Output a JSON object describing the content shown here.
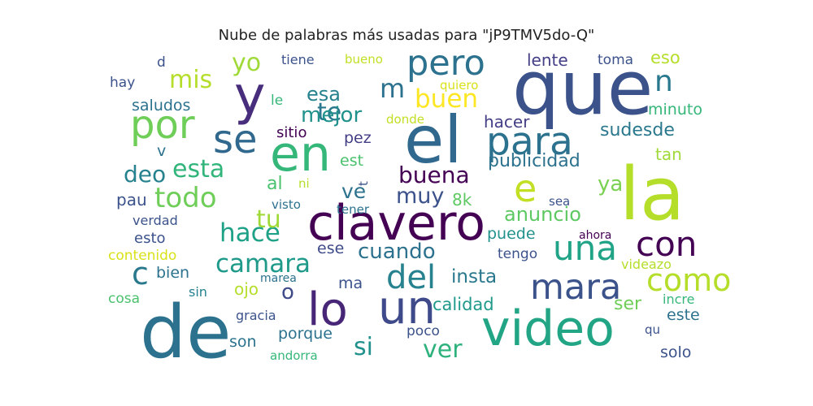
{
  "chart_data": {
    "type": "wordcloud",
    "title": "Nube de palabras más usadas para \"jP9TMV5do-Q\"",
    "background": "#ffffff",
    "colormap": "viridis",
    "words": [
      {
        "text": "que",
        "color": "#3b528b"
      },
      {
        "text": "la",
        "color": "#b5de2b"
      },
      {
        "text": "de",
        "color": "#2c728e"
      },
      {
        "text": "el",
        "color": "#31688e"
      },
      {
        "text": "y",
        "color": "#472d7b"
      },
      {
        "text": "clavero",
        "color": "#440154"
      },
      {
        "text": "en",
        "color": "#35b779"
      },
      {
        "text": "video",
        "color": "#21a585"
      },
      {
        "text": "un",
        "color": "#3e4a89"
      },
      {
        "text": "lo",
        "color": "#482677"
      },
      {
        "text": "se",
        "color": "#31688e"
      },
      {
        "text": "por",
        "color": "#6ece58"
      },
      {
        "text": "para",
        "color": "#2c728e"
      },
      {
        "text": "pero",
        "color": "#2c728e"
      },
      {
        "text": "e",
        "color": "#c2df23"
      },
      {
        "text": "mara",
        "color": "#3b528b"
      },
      {
        "text": "una",
        "color": "#20a386"
      },
      {
        "text": "con",
        "color": "#440154"
      },
      {
        "text": "como",
        "color": "#b5de2b"
      },
      {
        "text": "c",
        "color": "#2a788e"
      },
      {
        "text": "del",
        "color": "#26828e"
      },
      {
        "text": "n",
        "color": "#2a788e"
      },
      {
        "text": "todo",
        "color": "#6ece58"
      },
      {
        "text": "camara",
        "color": "#1f9a8a"
      },
      {
        "text": "hace",
        "color": "#1fa188"
      },
      {
        "text": "buen",
        "color": "#fde725"
      },
      {
        "text": "mis",
        "color": "#b5de2b"
      },
      {
        "text": "esta",
        "color": "#31b57b"
      },
      {
        "text": "ver",
        "color": "#2db27d"
      },
      {
        "text": "yo",
        "color": "#a0da39"
      },
      {
        "text": "tu",
        "color": "#a0da39"
      },
      {
        "text": "te",
        "color": "#2a788e"
      },
      {
        "text": "buena",
        "color": "#440154"
      },
      {
        "text": "deo",
        "color": "#26828e"
      },
      {
        "text": "mejor",
        "color": "#21918c"
      },
      {
        "text": "m",
        "color": "#2c728e"
      },
      {
        "text": "muy",
        "color": "#3b528b"
      },
      {
        "text": "si",
        "color": "#21918c"
      },
      {
        "text": "o",
        "color": "#3e4a89"
      },
      {
        "text": "cuando",
        "color": "#2c728e"
      },
      {
        "text": "anuncio",
        "color": "#5ec962"
      },
      {
        "text": "esa",
        "color": "#26828e"
      },
      {
        "text": "ya",
        "color": "#7ad151"
      },
      {
        "text": "ve",
        "color": "#2c728e"
      },
      {
        "text": "publicidad",
        "color": "#2c728e"
      },
      {
        "text": "al",
        "color": "#4ac16d"
      },
      {
        "text": "insta",
        "color": "#2a788e"
      },
      {
        "text": "calidad",
        "color": "#1f9a8a"
      },
      {
        "text": "ser",
        "color": "#6ece58"
      },
      {
        "text": "sudesde",
        "color": "#2a788e"
      },
      {
        "text": "hacer",
        "color": "#433e85"
      },
      {
        "text": "saludos",
        "color": "#2c728e"
      },
      {
        "text": "lente",
        "color": "#433e85"
      },
      {
        "text": "eso",
        "color": "#b5de2b"
      },
      {
        "text": "porque",
        "color": "#2c728e"
      },
      {
        "text": "pez",
        "color": "#433e85"
      },
      {
        "text": "minuto",
        "color": "#35b779"
      },
      {
        "text": "8k",
        "color": "#5ec962"
      },
      {
        "text": "tan",
        "color": "#a0da39"
      },
      {
        "text": "puede",
        "color": "#21918c"
      },
      {
        "text": "este",
        "color": "#2c728e"
      },
      {
        "text": "ojo",
        "color": "#b5de2b"
      },
      {
        "text": "bien",
        "color": "#2c728e"
      },
      {
        "text": "solo",
        "color": "#3b528b"
      },
      {
        "text": "son",
        "color": "#2c728e"
      },
      {
        "text": "v",
        "color": "#2c728e"
      },
      {
        "text": "est",
        "color": "#4ac16d"
      },
      {
        "text": "pau",
        "color": "#3b528b"
      },
      {
        "text": "sitio",
        "color": "#440154"
      },
      {
        "text": "esto",
        "color": "#3b528b"
      },
      {
        "text": "ese",
        "color": "#3e4a89"
      },
      {
        "text": "toma",
        "color": "#3b528b"
      },
      {
        "text": "ma",
        "color": "#3b528b"
      },
      {
        "text": "hay",
        "color": "#3b528b"
      },
      {
        "text": "tengo",
        "color": "#3b528b"
      },
      {
        "text": "poco",
        "color": "#3b528b"
      },
      {
        "text": "cosa",
        "color": "#4ac16d"
      },
      {
        "text": "verdad",
        "color": "#3b528b"
      },
      {
        "text": "contenido",
        "color": "#d8e219"
      },
      {
        "text": "sin",
        "color": "#26828e"
      },
      {
        "text": "tiene",
        "color": "#3b528b"
      },
      {
        "text": "d",
        "color": "#3b528b"
      },
      {
        "text": "le",
        "color": "#35b779"
      },
      {
        "text": "visto",
        "color": "#2c728e"
      },
      {
        "text": "tener",
        "color": "#2c728e"
      },
      {
        "text": "sea",
        "color": "#3b528b"
      },
      {
        "text": "gracia",
        "color": "#3b528b"
      },
      {
        "text": "andorra",
        "color": "#35b779"
      },
      {
        "text": "videazo",
        "color": "#b5de2b"
      },
      {
        "text": "incre",
        "color": "#35b779"
      },
      {
        "text": "ahora",
        "color": "#440154"
      },
      {
        "text": "quiero",
        "color": "#d8e219"
      },
      {
        "text": "bueno",
        "color": "#c2df23"
      },
      {
        "text": "donde",
        "color": "#c2df23"
      },
      {
        "text": "marea",
        "color": "#2c728e"
      },
      {
        "text": "qu",
        "color": "#3b528b"
      },
      {
        "text": "ni",
        "color": "#b5de2b"
      },
      {
        "text": "t",
        "color": "#3b528b"
      }
    ]
  }
}
